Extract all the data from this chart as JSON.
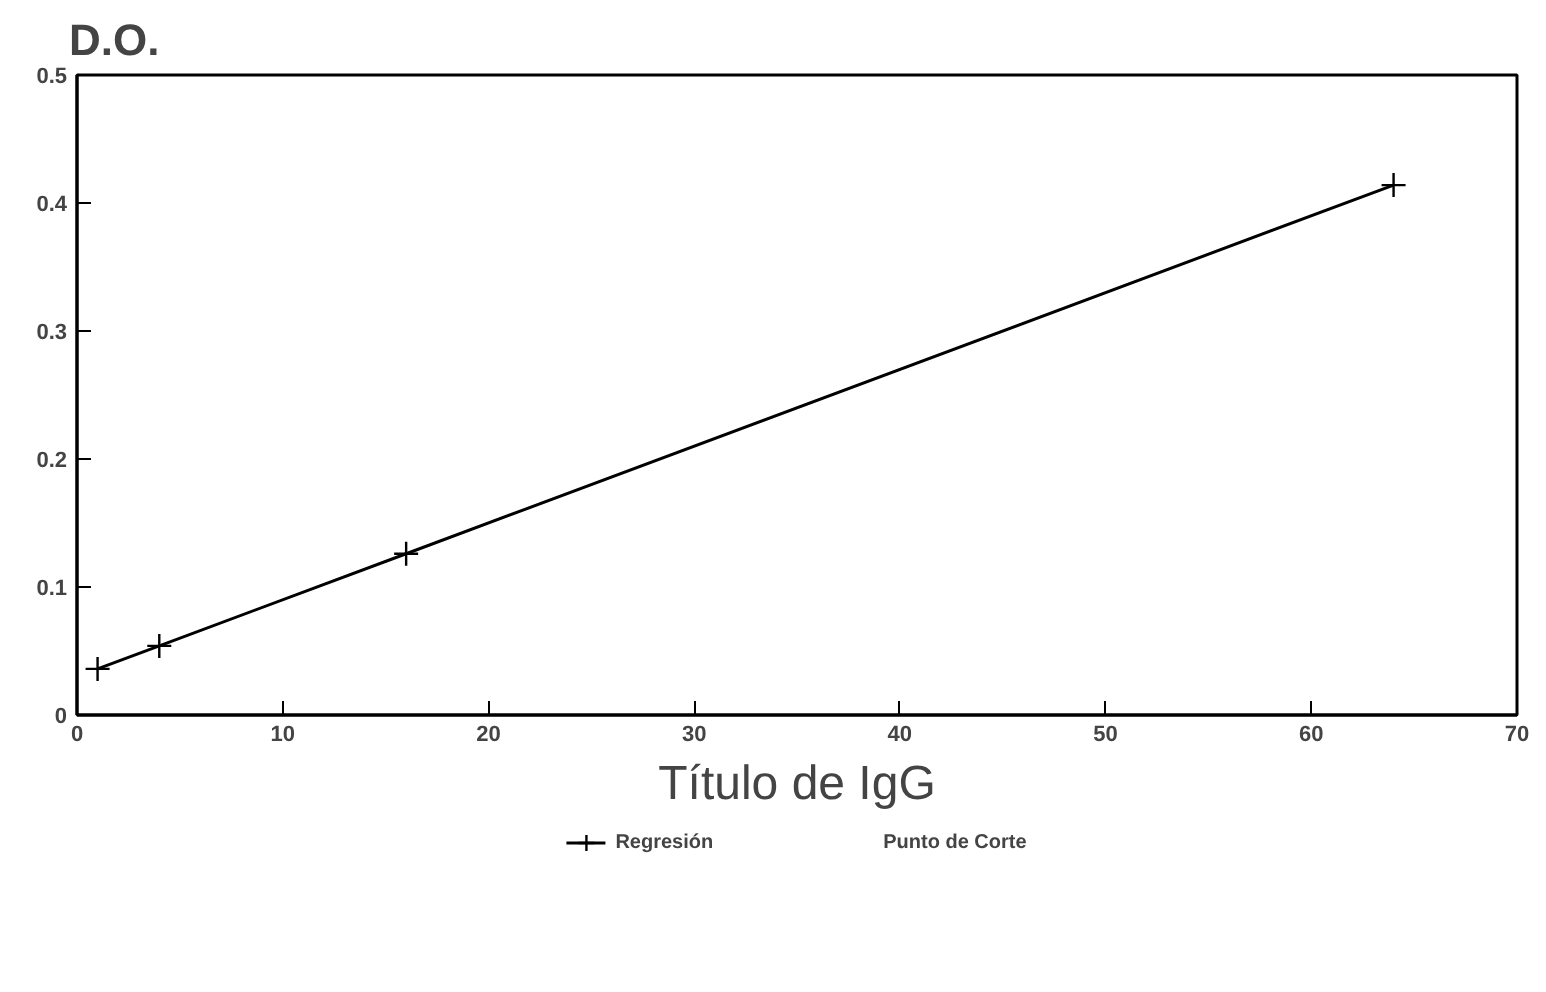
{
  "chart_data": {
    "type": "line",
    "ylabel": "D.O.",
    "xlabel": "Título de IgG",
    "x": [
      1,
      4,
      16,
      64
    ],
    "series": [
      {
        "name": "Regresión",
        "color": "#000000",
        "values": [
          0.036,
          0.054,
          0.126,
          0.414
        ]
      },
      {
        "name": "Punto de Corte",
        "values": [
          null,
          null,
          null,
          null
        ]
      }
    ],
    "xlim": [
      0,
      70
    ],
    "xticks": [
      0,
      10,
      20,
      30,
      40,
      50,
      60,
      70
    ],
    "ylim": [
      0,
      0.5
    ],
    "yticks": [
      0,
      0.1,
      0.2,
      0.3,
      0.4,
      0.5
    ],
    "marker": "cross",
    "line_style": "solid",
    "legend": "bottom",
    "grid": false
  }
}
